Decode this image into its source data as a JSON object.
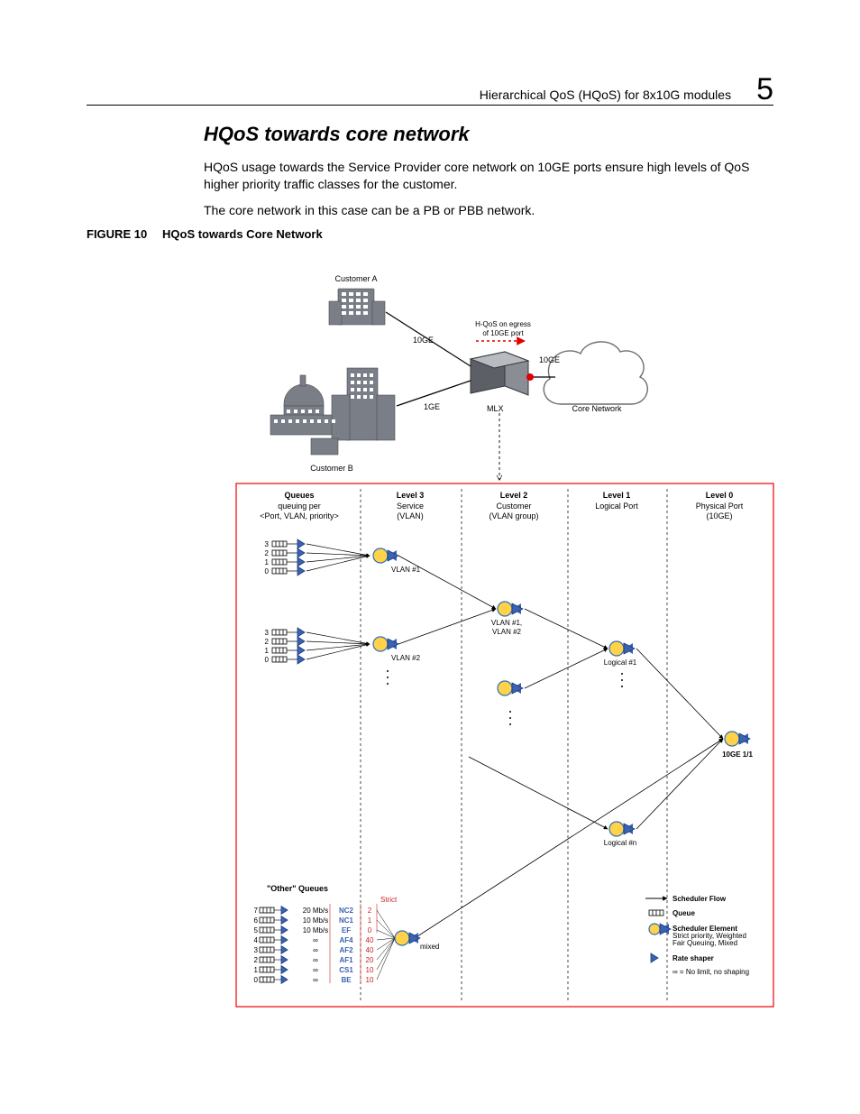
{
  "header": {
    "title": "Hierarchical QoS (HQoS) for 8x10G modules",
    "chapter": "5"
  },
  "section": {
    "heading": "HQoS towards core network",
    "para1": "HQoS usage towards the Service Provider core network on 10GE ports ensure high levels of QoS higher priority traffic classes for the customer.",
    "para2": "The core network in this case can be a PB or PBB network."
  },
  "figure": {
    "label": "FIGURE 10",
    "title": "HQoS towards Core Network"
  },
  "top": {
    "customerA": "Customer A",
    "customerB": "Customer B",
    "ge10_a": "10GE",
    "ge10_b": "10GE",
    "ge1": "1GE",
    "mlx": "MLX",
    "core": "Core Network",
    "egress1": "H-QoS on egress",
    "egress2": "of 10GE port"
  },
  "columns": [
    {
      "head": "Queues",
      "sub1": "queuing per",
      "sub2": "<Port, VLAN, priority>"
    },
    {
      "head": "Level 3",
      "sub1": "Service",
      "sub2": "(VLAN)"
    },
    {
      "head": "Level 2",
      "sub1": "Customer",
      "sub2": "(VLAN group)"
    },
    {
      "head": "Level 1",
      "sub1": "Logical Port",
      "sub2": ""
    },
    {
      "head": "Level 0",
      "sub1": "Physical Port",
      "sub2": "(10GE)"
    }
  ],
  "nodes": {
    "vlan1": "VLAN #1",
    "vlan2": "VLAN #2",
    "vlan12a": "VLAN #1,",
    "vlan12b": "VLAN #2",
    "log1": "Logical #1",
    "logn": "Logical #n",
    "port": "10GE 1/1",
    "other": "\"Other\" Queues",
    "strict": "Strict",
    "mixed": "mixed"
  },
  "otherQueues": [
    {
      "idx": "7",
      "rate": "20 Mb/s",
      "cls": "NC2",
      "wt": "2"
    },
    {
      "idx": "6",
      "rate": "10 Mb/s",
      "cls": "NC1",
      "wt": "1"
    },
    {
      "idx": "5",
      "rate": "10 Mb/s",
      "cls": "EF",
      "wt": "0"
    },
    {
      "idx": "4",
      "rate": "∞",
      "cls": "AF4",
      "wt": "40"
    },
    {
      "idx": "3",
      "rate": "∞",
      "cls": "AF2",
      "wt": "40"
    },
    {
      "idx": "2",
      "rate": "∞",
      "cls": "AF1",
      "wt": "20"
    },
    {
      "idx": "1",
      "rate": "∞",
      "cls": "CS1",
      "wt": "10"
    },
    {
      "idx": "0",
      "rate": "∞",
      "cls": "BE",
      "wt": "10"
    }
  ],
  "queueIdx": [
    "3",
    "2",
    "1",
    "0"
  ],
  "legend": {
    "flow": "Scheduler Flow",
    "queue": "Queue",
    "sched": "Scheduler Element",
    "schedSub": "Strict priority, Weighted\nFair Queuing, Mixed",
    "shaper": "Rate shaper",
    "inf": "∞ = No limit, no shaping"
  },
  "colors": {
    "building": "#7a7e87",
    "shaper": "#3b63b0",
    "shaperDark": "#1a3a80",
    "sched": "#ffd24a",
    "schedStroke": "#2e6fb3",
    "red": "#e00000",
    "strict": "#cc2222"
  }
}
